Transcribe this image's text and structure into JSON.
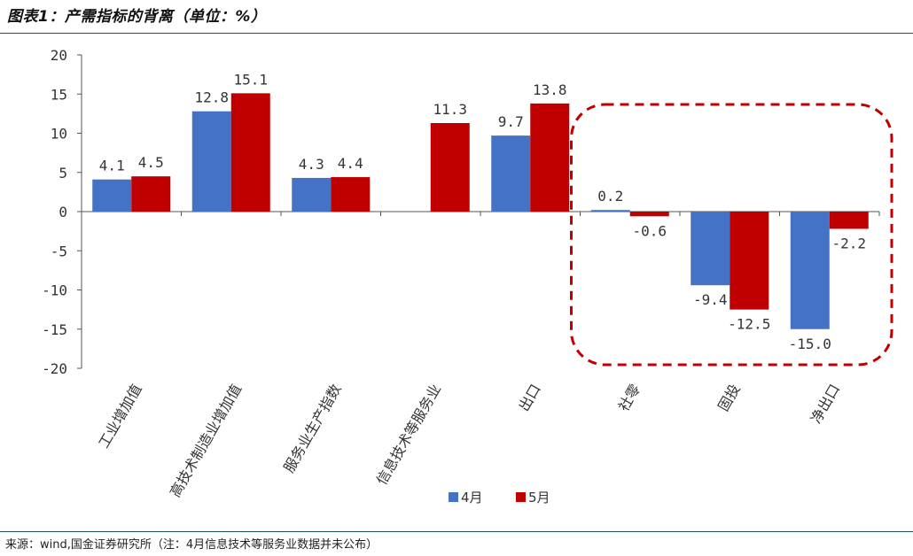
{
  "header": {
    "title": "图表1：产需指标的背离（单位：%）"
  },
  "footer": {
    "source": "来源：wind,国金证券研究所（注：4月信息技术等服务业数据并未公布）"
  },
  "chart_data": {
    "type": "bar",
    "categories": [
      "工业增加值",
      "高技术制造业增加值",
      "服务业生产指数",
      "信息技术等服务业",
      "出口",
      "社零",
      "固投",
      "净出口"
    ],
    "series": [
      {
        "name": "4月",
        "color": "#4472c4",
        "values": [
          4.1,
          12.8,
          4.3,
          null,
          9.7,
          0.2,
          -9.4,
          -15.0
        ]
      },
      {
        "name": "5月",
        "color": "#c00000",
        "values": [
          4.5,
          15.1,
          4.4,
          11.3,
          13.8,
          -0.6,
          -12.5,
          -2.2
        ]
      }
    ],
    "value_labels": [
      [
        "4.1",
        "12.8",
        "4.3",
        "",
        "9.7",
        "0.2",
        "-9.4",
        "-15.0"
      ],
      [
        "4.5",
        "15.1",
        "4.4",
        "11.3",
        "13.8",
        "-0.6",
        "-12.5",
        "-2.2"
      ]
    ],
    "yticks": [
      "20",
      "15",
      "10",
      "5",
      "0",
      "-5",
      "-10",
      "-15",
      "-20"
    ],
    "ylim": [
      -20,
      20
    ],
    "legend_position": "bottom-center",
    "highlight": {
      "categories": [
        "社零",
        "固投",
        "净出口"
      ],
      "color": "#c00000",
      "style": "dashed-rounded-box"
    }
  }
}
